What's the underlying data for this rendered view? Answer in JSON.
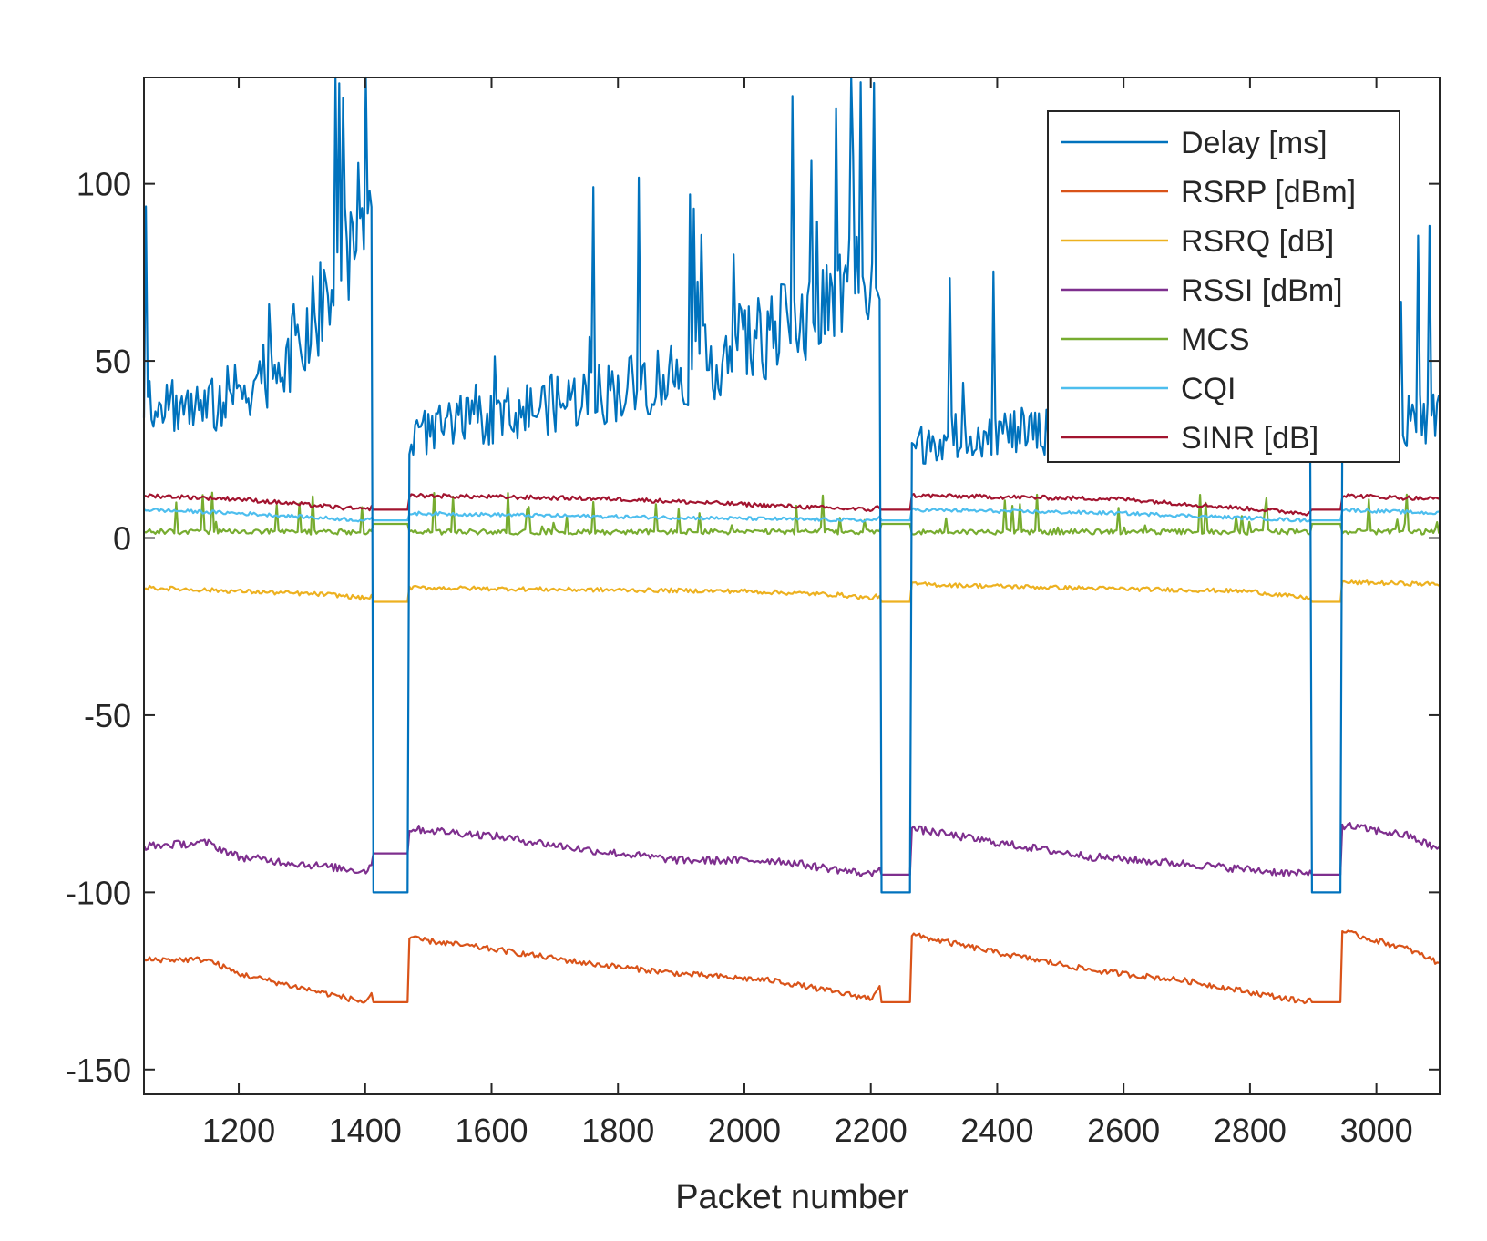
{
  "chart_data": {
    "type": "line",
    "title": "",
    "xlabel": "Packet number",
    "ylabel": "",
    "xlim": [
      1050,
      3100
    ],
    "ylim": [
      -157,
      130
    ],
    "xticks": [
      1200,
      1400,
      1600,
      1800,
      2000,
      2200,
      2400,
      2600,
      2800,
      3000
    ],
    "yticks": [
      -150,
      -100,
      -50,
      0,
      50,
      100
    ],
    "xtick_labels": [
      "1200",
      "1400",
      "1600",
      "1800",
      "2000",
      "2200",
      "2400",
      "2600",
      "2800",
      "3000"
    ],
    "ytick_labels": [
      "-150",
      "-100",
      "-50",
      "0",
      "50",
      "100"
    ],
    "grid": false,
    "legend_position": "top-right",
    "outage_intervals": [
      [
        1410,
        1470
      ],
      [
        2215,
        2265
      ],
      [
        2895,
        2945
      ]
    ],
    "series": [
      {
        "name": "Delay [ms]",
        "color": "#0072BD",
        "outage_value": -100,
        "points": [
          [
            1050,
            40
          ],
          [
            1100,
            38
          ],
          [
            1150,
            36
          ],
          [
            1200,
            42
          ],
          [
            1250,
            48
          ],
          [
            1300,
            56
          ],
          [
            1350,
            70
          ],
          [
            1400,
            88
          ],
          [
            1470,
            30
          ],
          [
            1500,
            30
          ],
          [
            1550,
            32
          ],
          [
            1600,
            34
          ],
          [
            1650,
            36
          ],
          [
            1700,
            38
          ],
          [
            1750,
            40
          ],
          [
            1800,
            42
          ],
          [
            1850,
            44
          ],
          [
            1900,
            47
          ],
          [
            1950,
            50
          ],
          [
            2000,
            55
          ],
          [
            2050,
            58
          ],
          [
            2100,
            62
          ],
          [
            2150,
            68
          ],
          [
            2200,
            80
          ],
          [
            2265,
            25
          ],
          [
            2300,
            28
          ],
          [
            2400,
            30
          ],
          [
            2500,
            30
          ],
          [
            2600,
            29
          ],
          [
            2700,
            30
          ],
          [
            2800,
            28
          ],
          [
            2880,
            28
          ],
          [
            2945,
            30
          ],
          [
            3000,
            32
          ],
          [
            3100,
            34
          ]
        ]
      },
      {
        "name": "RSRP [dBm]",
        "color": "#D95319",
        "outage_value": -131,
        "points": [
          [
            1050,
            -119
          ],
          [
            1150,
            -119
          ],
          [
            1200,
            -123
          ],
          [
            1300,
            -127
          ],
          [
            1400,
            -131
          ],
          [
            1470,
            -113
          ],
          [
            1600,
            -116
          ],
          [
            1750,
            -120
          ],
          [
            1900,
            -123
          ],
          [
            2050,
            -125
          ],
          [
            2200,
            -130
          ],
          [
            2265,
            -112
          ],
          [
            2400,
            -117
          ],
          [
            2550,
            -122
          ],
          [
            2700,
            -125
          ],
          [
            2890,
            -131
          ],
          [
            2945,
            -111
          ],
          [
            3050,
            -116
          ],
          [
            3100,
            -120
          ]
        ]
      },
      {
        "name": "RSRQ [dB]",
        "color": "#EDB120",
        "outage_value": -18,
        "points": [
          [
            1050,
            -14
          ],
          [
            1200,
            -15
          ],
          [
            1350,
            -16
          ],
          [
            1400,
            -17
          ],
          [
            1470,
            -14
          ],
          [
            1700,
            -14.5
          ],
          [
            2000,
            -15
          ],
          [
            2150,
            -16
          ],
          [
            2200,
            -17
          ],
          [
            2265,
            -13
          ],
          [
            2500,
            -14
          ],
          [
            2800,
            -15
          ],
          [
            2890,
            -17
          ],
          [
            2945,
            -12.5
          ],
          [
            3100,
            -13
          ]
        ]
      },
      {
        "name": "RSSI [dBm]",
        "color": "#7E2F8E",
        "outage_value": -95,
        "outage_value_first": -89,
        "points": [
          [
            1050,
            -87
          ],
          [
            1150,
            -86
          ],
          [
            1200,
            -90
          ],
          [
            1300,
            -92
          ],
          [
            1400,
            -94
          ],
          [
            1470,
            -82
          ],
          [
            1600,
            -84
          ],
          [
            1750,
            -88
          ],
          [
            1900,
            -91
          ],
          [
            2050,
            -91
          ],
          [
            2200,
            -95
          ],
          [
            2265,
            -82
          ],
          [
            2400,
            -86
          ],
          [
            2550,
            -90
          ],
          [
            2700,
            -92
          ],
          [
            2890,
            -95
          ],
          [
            2945,
            -81
          ],
          [
            3050,
            -84
          ],
          [
            3100,
            -88
          ]
        ]
      },
      {
        "name": "MCS",
        "color": "#77AC30",
        "outage_value": 4,
        "points": [
          [
            1050,
            1
          ],
          [
            1400,
            1
          ],
          [
            1470,
            1
          ],
          [
            2200,
            1
          ],
          [
            2265,
            1
          ],
          [
            2890,
            1
          ],
          [
            2945,
            1
          ],
          [
            3100,
            1
          ]
        ]
      },
      {
        "name": "CQI",
        "color": "#4DBEEE",
        "outage_value": 5,
        "points": [
          [
            1050,
            8
          ],
          [
            1200,
            7
          ],
          [
            1400,
            5
          ],
          [
            1470,
            7
          ],
          [
            1800,
            6
          ],
          [
            2200,
            5
          ],
          [
            2265,
            8
          ],
          [
            2600,
            7
          ],
          [
            2890,
            5
          ],
          [
            2945,
            8
          ],
          [
            3100,
            7
          ]
        ]
      },
      {
        "name": "SINR [dB]",
        "color": "#A2142F",
        "outage_value": 8,
        "points": [
          [
            1050,
            12
          ],
          [
            1200,
            11
          ],
          [
            1400,
            8
          ],
          [
            1470,
            12
          ],
          [
            1800,
            11
          ],
          [
            2200,
            8
          ],
          [
            2265,
            12
          ],
          [
            2600,
            11
          ],
          [
            2890,
            7
          ],
          [
            2945,
            12
          ],
          [
            3100,
            11
          ]
        ]
      }
    ]
  }
}
